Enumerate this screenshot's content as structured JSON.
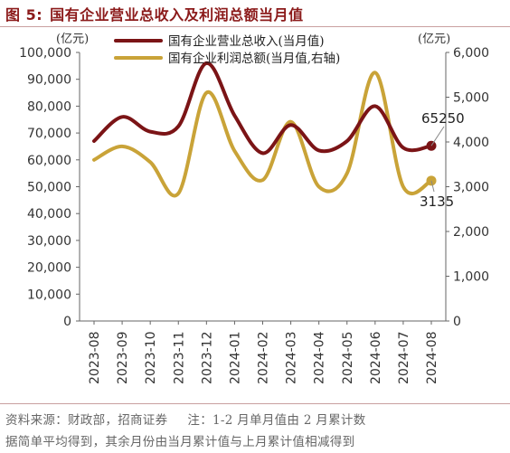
{
  "figure": {
    "label": "图 5:",
    "title": "国有企业营业总收入及利润总额当月值"
  },
  "chart_data": {
    "type": "line",
    "categories": [
      "2023-08",
      "2023-09",
      "2023-10",
      "2023-11",
      "2023-12",
      "2024-01",
      "2024-02",
      "2024-03",
      "2024-04",
      "2024-05",
      "2024-06",
      "2024-07",
      "2024-08"
    ],
    "left_axis": {
      "unit_label": "(亿元)",
      "ylim": [
        0,
        100000
      ],
      "ticks": [
        "0",
        "10,000",
        "20,000",
        "30,000",
        "40,000",
        "50,000",
        "60,000",
        "70,000",
        "80,000",
        "90,000",
        "100,000"
      ]
    },
    "right_axis": {
      "unit_label": "(亿元)",
      "ylim": [
        0,
        6000
      ],
      "ticks": [
        "0",
        "1,000",
        "2,000",
        "3,000",
        "4,000",
        "5,000",
        "6,000"
      ]
    },
    "series": [
      {
        "name": "国有企业营业总收入(当月值)",
        "axis": "left",
        "color": "#7b1416",
        "values": [
          67000,
          76000,
          70500,
          72500,
          96000,
          76500,
          62500,
          73000,
          63500,
          67000,
          80000,
          64500,
          65250
        ]
      },
      {
        "name": "国有企业利润总额(当月值,右轴)",
        "axis": "right",
        "color": "#c9a338",
        "values": [
          3600,
          3900,
          3550,
          2850,
          5100,
          3800,
          3150,
          4450,
          3000,
          3300,
          5550,
          3000,
          3135
        ]
      }
    ],
    "end_labels": [
      "65250",
      "3135"
    ],
    "grid": false,
    "legend_position": "top-center"
  },
  "footer": {
    "source": "资料来源：财政部，招商证券",
    "note_line1": "注：1-2 月单月值由 2 月累计数",
    "note_line2": "据简单平均得到，其余月份由当月累计值与上月累计值相减得到"
  }
}
